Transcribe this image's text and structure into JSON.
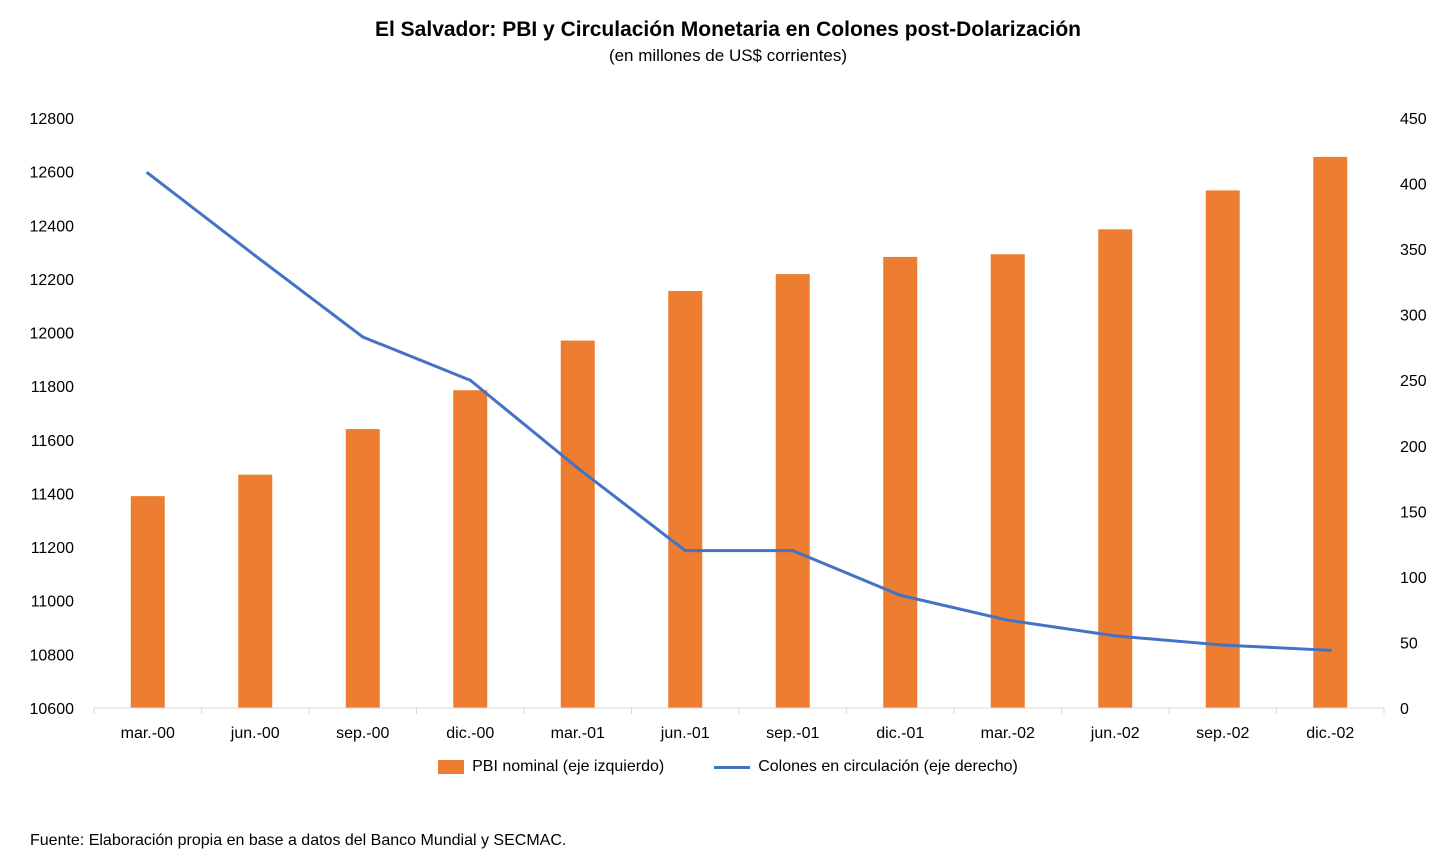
{
  "chart_data": {
    "type": "bar",
    "title": "El Salvador: PBI y Circulación Monetaria en Colones post-Dolarización",
    "subtitle": "(en millones de US$ corrientes)",
    "categories": [
      "mar.-00",
      "jun.-00",
      "sep.-00",
      "dic.-00",
      "mar.-01",
      "jun.-01",
      "sep.-01",
      "dic.-01",
      "mar.-02",
      "jun.-02",
      "sep.-02",
      "dic.-02"
    ],
    "series": [
      {
        "name": "PBI nominal (eje izquierdo)",
        "type": "bar",
        "axis": "left",
        "color": "#ED7D31",
        "values": [
          11390,
          11470,
          11640,
          11785,
          11970,
          12155,
          12218,
          12282,
          12292,
          12385,
          12530,
          12655
        ]
      },
      {
        "name": "Colones en circulación (eje derecho)",
        "type": "line",
        "axis": "right",
        "color": "#4472C4",
        "values": [
          408,
          345,
          283,
          250,
          183,
          120,
          120,
          86,
          67,
          55,
          48,
          44
        ]
      }
    ],
    "y_left": {
      "lim": [
        10600,
        12800
      ],
      "ticks": [
        10600,
        10800,
        11000,
        11200,
        11400,
        11600,
        11800,
        12000,
        12200,
        12400,
        12600,
        12800
      ]
    },
    "y_right": {
      "lim": [
        0,
        450
      ],
      "ticks": [
        0,
        50,
        100,
        150,
        200,
        250,
        300,
        350,
        400,
        450
      ]
    },
    "grid": false,
    "legend": "bottom",
    "source": "Fuente: Elaboración propia en base a datos del Banco Mundial y SECMAC."
  }
}
